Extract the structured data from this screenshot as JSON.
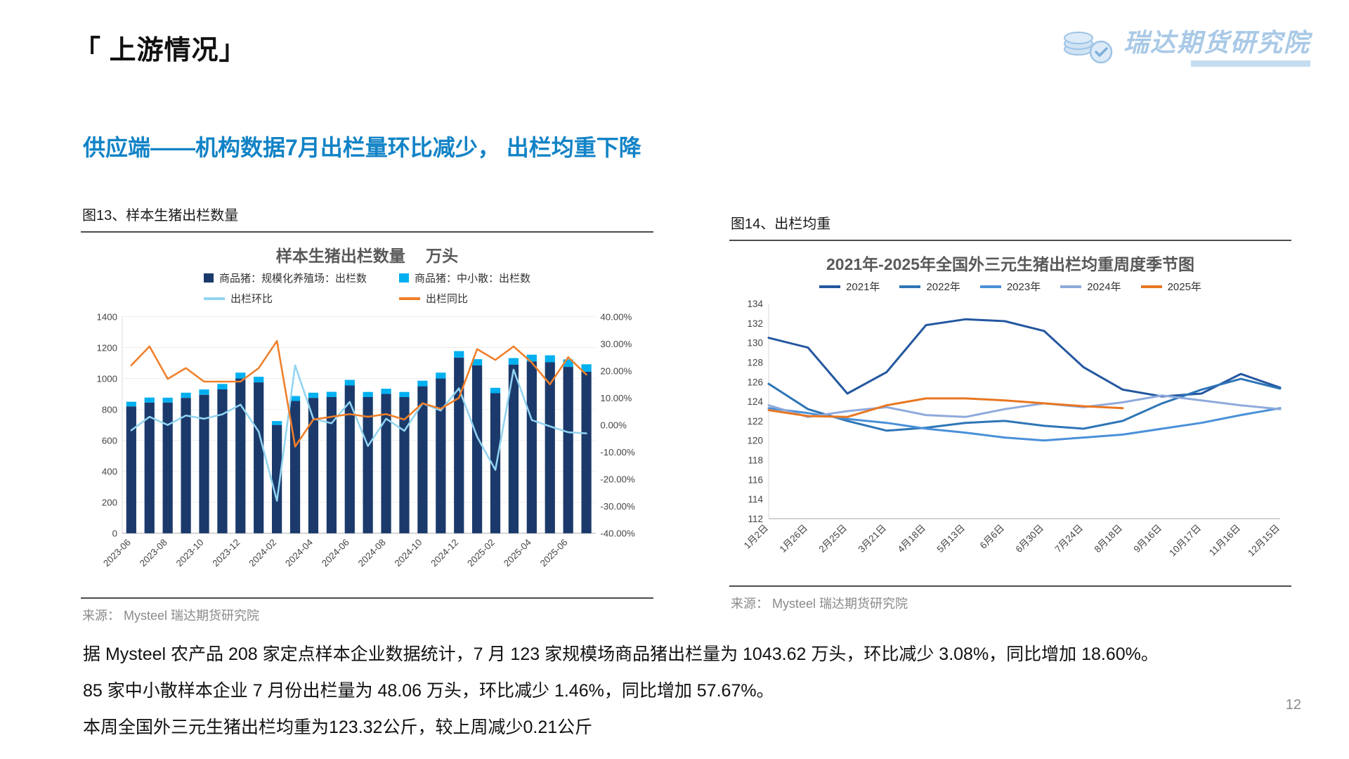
{
  "header": {
    "title": "「 上游情况」",
    "logo_text": "瑞达期货研究院"
  },
  "subtitle": "供应端——机构数据7月出栏量环比减少， 出栏均重下降",
  "figure13": {
    "caption": "图13、样本生猪出栏数量",
    "source": "来源： Mysteel  瑞达期货研究院"
  },
  "figure14": {
    "caption": "图14、出栏均重",
    "source": "来源： Mysteel  瑞达期货研究院"
  },
  "footer": {
    "line1": "据 Mysteel 农产品 208 家定点样本企业数据统计，7 月 123 家规模场商品猪出栏量为 1043.62 万头，环比减少 3.08%，同比增加 18.60%。",
    "line2": "85 家中小散样本企业 7 月份出栏量为 48.06 万头，环比减少 1.46%，同比增加 57.67%。",
    "line3": "本周全国外三元生猪出栏均重为123.32公斤，较上周减少0.21公斤"
  },
  "page_number": "12",
  "chart_data": [
    {
      "type": "bar",
      "subtype": "bar+line-combo",
      "title": "样本生猪出栏数量　 万头",
      "categories": [
        "2023-06",
        "2023-07",
        "2023-08",
        "2023-09",
        "2023-10",
        "2023-11",
        "2023-12",
        "2024-01",
        "2024-02",
        "2024-03",
        "2024-04",
        "2024-05",
        "2024-06",
        "2024-07",
        "2024-08",
        "2024-09",
        "2024-10",
        "2024-11",
        "2024-12",
        "2025-01",
        "2025-02",
        "2025-03",
        "2025-04",
        "2025-05",
        "2025-06",
        "2025-07"
      ],
      "x_tick_every": 2,
      "left_axis": {
        "min": 0,
        "max": 1400,
        "step": 200
      },
      "right_axis": {
        "min": -40,
        "max": 40,
        "step": 10,
        "format": "percent2"
      },
      "bar_series": [
        {
          "name": "商品猪：规模化养殖场：出栏数",
          "color": "#1b3a6b",
          "axis": "left",
          "values": [
            820,
            845,
            845,
            875,
            895,
            930,
            1000,
            975,
            700,
            855,
            875,
            880,
            955,
            880,
            900,
            880,
            950,
            1000,
            1135,
            1085,
            905,
            1090,
            1110,
            1105,
            1075,
            1044
          ]
        },
        {
          "name": "商品猪：中小散：出栏数",
          "color": "#00b0f0",
          "axis": "left",
          "stacked": true,
          "values": [
            30,
            32,
            31,
            33,
            34,
            35,
            38,
            36,
            25,
            32,
            33,
            34,
            36,
            33,
            34,
            33,
            36,
            38,
            42,
            40,
            35,
            42,
            44,
            45,
            48,
            48
          ]
        }
      ],
      "line_series": [
        {
          "name": "出栏环比",
          "color": "#92d4f0",
          "axis": "right",
          "values": [
            -2.0,
            3.0,
            0.0,
            3.5,
            2.3,
            3.9,
            7.5,
            -2.5,
            -28.0,
            22.0,
            2.3,
            0.6,
            8.5,
            -7.8,
            2.3,
            -2.2,
            8.0,
            5.3,
            13.5,
            -4.4,
            -16.6,
            20.4,
            1.8,
            -0.5,
            -2.7,
            -3.1
          ]
        },
        {
          "name": "出栏同比",
          "color": "#f07f29",
          "axis": "right",
          "values": [
            22,
            29,
            17,
            21,
            16,
            16,
            16,
            21,
            31,
            -8,
            2,
            3,
            4,
            3,
            4,
            2,
            8,
            6,
            10,
            28,
            24,
            29,
            23,
            15,
            25,
            18.6
          ]
        }
      ],
      "legend_position": "top",
      "grid": true
    },
    {
      "type": "line",
      "title": "2021年-2025年全国外三元生猪出栏均重周度季节图",
      "categories": [
        "1月2日",
        "1月26日",
        "2月25日",
        "3月21日",
        "4月18日",
        "5月13日",
        "6月6日",
        "6月30日",
        "7月24日",
        "8月18日",
        "9月16日",
        "10月17日",
        "11月16日",
        "12月15日"
      ],
      "y_axis": {
        "min": 112,
        "max": 134,
        "step": 2
      },
      "series": [
        {
          "name": "2021年",
          "color": "#2457a0",
          "values": [
            130.5,
            129.5,
            124.8,
            127.0,
            131.8,
            132.4,
            132.2,
            131.2,
            127.5,
            125.2,
            124.5,
            124.8,
            126.8,
            125.4
          ]
        },
        {
          "name": "2022年",
          "color": "#2e75b6",
          "values": [
            125.8,
            123.2,
            122.0,
            121.0,
            121.3,
            121.8,
            122.0,
            121.5,
            121.2,
            122.0,
            123.8,
            125.2,
            126.3,
            125.3
          ]
        },
        {
          "name": "2023年",
          "color": "#4a90d9",
          "values": [
            123.3,
            122.8,
            122.2,
            121.8,
            121.2,
            120.8,
            120.3,
            120.0,
            120.3,
            120.6,
            121.2,
            121.8,
            122.6,
            123.3
          ]
        },
        {
          "name": "2024年",
          "color": "#8faadc",
          "values": [
            123.6,
            122.4,
            123.0,
            123.4,
            122.6,
            122.4,
            123.2,
            123.8,
            123.4,
            123.9,
            124.6,
            124.1,
            123.6,
            123.2
          ]
        },
        {
          "name": "2025年",
          "color": "#e87722",
          "values": [
            123.1,
            122.5,
            122.4,
            123.6,
            124.3,
            124.3,
            124.1,
            123.8,
            123.5,
            123.3
          ]
        }
      ],
      "legend_position": "top",
      "grid": false
    }
  ]
}
